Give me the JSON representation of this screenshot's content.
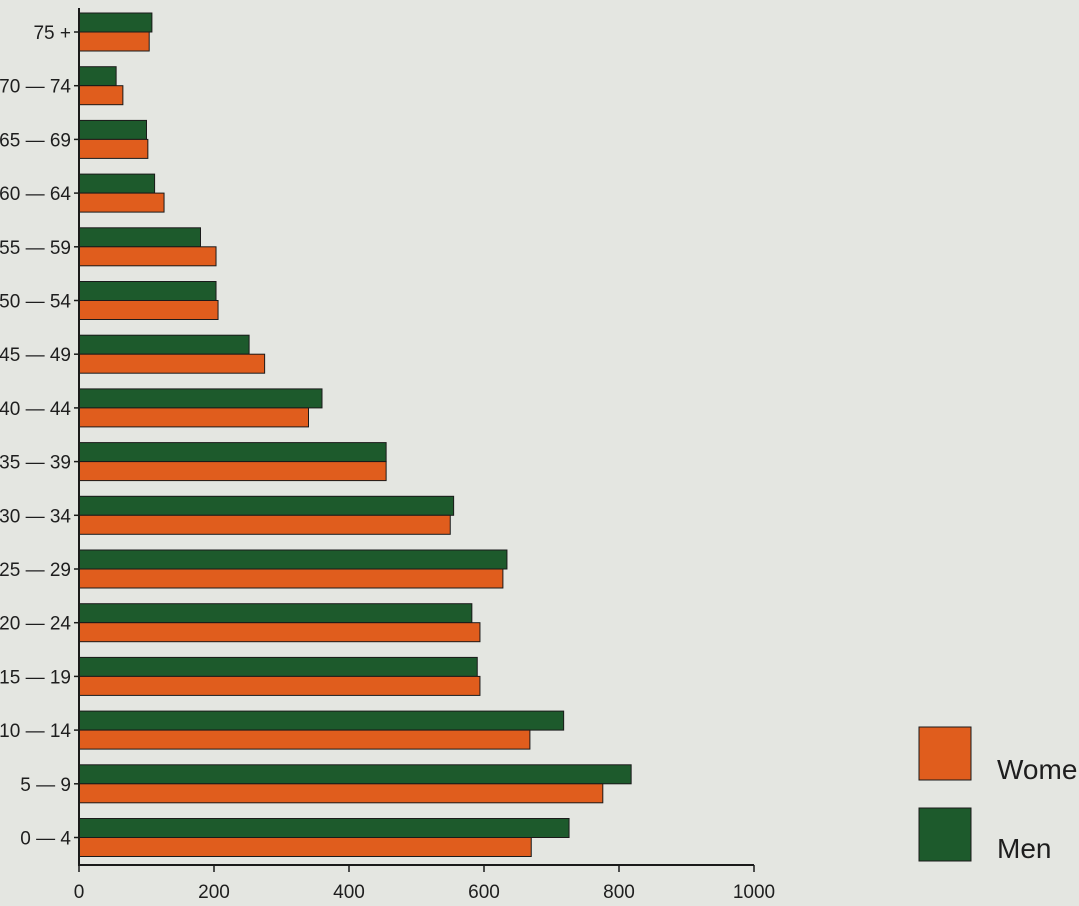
{
  "chart_data": {
    "type": "bar",
    "orientation": "horizontal",
    "categories": [
      "75 +",
      "70 — 74",
      "65 — 69",
      "60 — 64",
      "55 — 59",
      "50 — 54",
      "45 — 49",
      "40 — 44",
      "35 — 39",
      "30 — 34",
      "25 — 29",
      "20 — 24",
      "15 — 19",
      "10 — 14",
      "5 — 9",
      "0 — 4"
    ],
    "series": [
      {
        "name": "Men",
        "color": "#1d5a2c",
        "values": [
          108,
          55,
          100,
          112,
          180,
          203,
          252,
          360,
          455,
          555,
          634,
          582,
          590,
          718,
          818,
          726
        ]
      },
      {
        "name": "Women",
        "color": "#e05d1d",
        "values": [
          104,
          65,
          102,
          126,
          203,
          206,
          275,
          340,
          455,
          550,
          628,
          594,
          594,
          668,
          776,
          670
        ]
      }
    ],
    "xlim": [
      0,
      1000
    ],
    "xticks": [
      "0",
      "200",
      "400",
      "600",
      "800",
      "1000"
    ],
    "grid": false,
    "legend": {
      "position": "bottom-right",
      "items": [
        {
          "name": "Women",
          "color": "#e05d1d"
        },
        {
          "name": "Men",
          "color": "#1d5a2c"
        }
      ]
    }
  }
}
